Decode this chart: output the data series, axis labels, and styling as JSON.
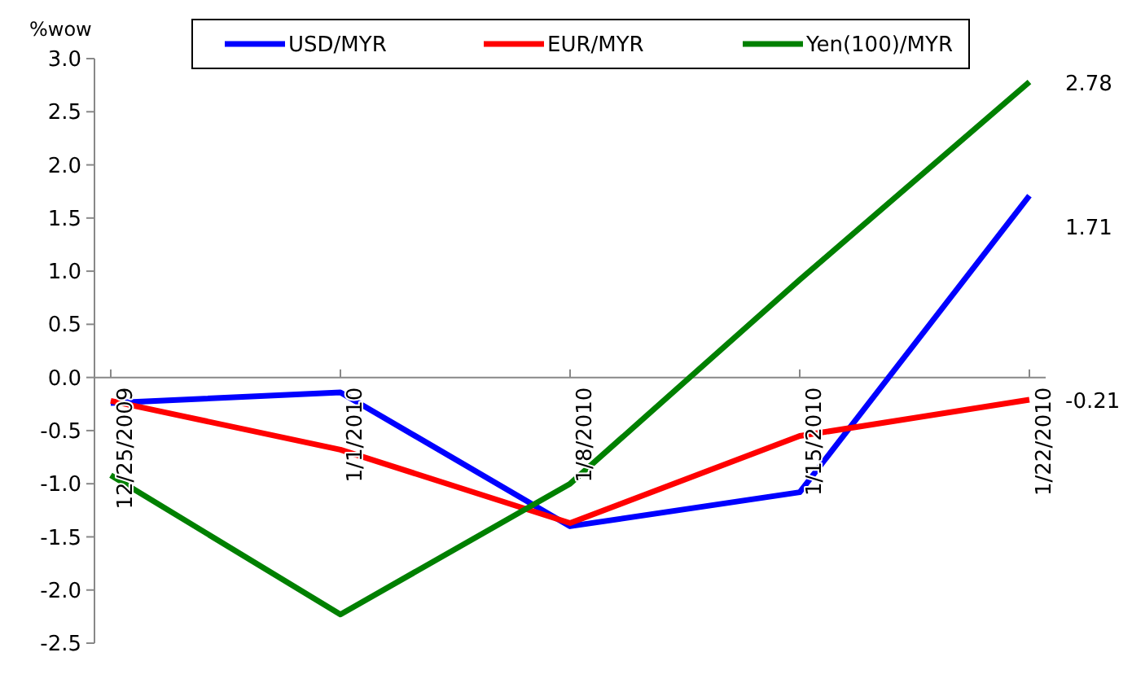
{
  "chart_data": {
    "type": "line",
    "ylabel": "%wow",
    "categories": [
      "12/25/2009",
      "1/1/2010",
      "1/8/2010",
      "1/15/2010",
      "1/22/2010"
    ],
    "series": [
      {
        "name": "USD/MYR",
        "color": "#0000ff",
        "values": [
          -0.24,
          -0.14,
          -1.4,
          -1.08,
          1.71
        ],
        "value_labels": [
          null,
          null,
          null,
          null,
          "1.71"
        ]
      },
      {
        "name": "EUR/MYR",
        "color": "#ff0000",
        "values": [
          -0.22,
          -0.68,
          -1.37,
          -0.55,
          -0.21
        ],
        "value_labels": [
          null,
          null,
          null,
          null,
          "-0.21"
        ]
      },
      {
        "name": "Yen(100)/MYR",
        "color": "#008000",
        "values": [
          -0.92,
          -2.23,
          -1.0,
          0.92,
          2.78
        ],
        "value_labels": [
          null,
          null,
          null,
          null,
          "2.78"
        ]
      }
    ],
    "ylim": [
      -2.5,
      3.0
    ],
    "yticks": [
      {
        "value": -2.5,
        "label": "-2.5"
      },
      {
        "value": -2.0,
        "label": "-2.0"
      },
      {
        "value": -1.5,
        "label": "-1.5"
      },
      {
        "value": -1.0,
        "label": "-1.0"
      },
      {
        "value": -0.5,
        "label": "-0.5"
      },
      {
        "value": 0,
        "label": "0.0"
      },
      {
        "value": 0.5,
        "label": "0.5"
      },
      {
        "value": 1.0,
        "label": "1.0"
      },
      {
        "value": 1.5,
        "label": "1.5"
      },
      {
        "value": 2.0,
        "label": "2.0"
      },
      {
        "value": 2.5,
        "label": "2.5"
      },
      {
        "value": 3.0,
        "label": "3.0"
      }
    ],
    "grid": false,
    "legend": "top",
    "marker": "none",
    "line_style": "solid"
  }
}
